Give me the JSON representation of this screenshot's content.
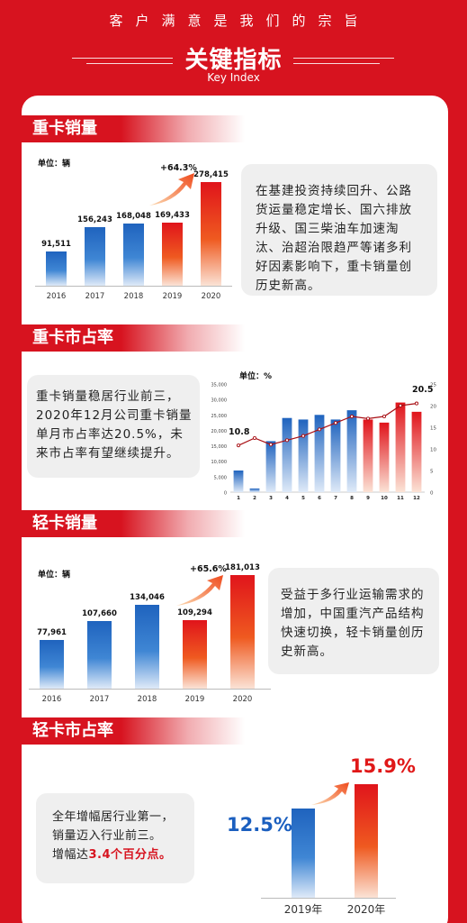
{
  "header": {
    "slogan": "客户满意是我们的宗旨",
    "title": "关键指标",
    "subtitle": "Key Index"
  },
  "heavy_sales": {
    "label": "重卡销量",
    "unit": "单位：辆",
    "growth": "+64.3%",
    "text": "在基建投资持续回升、公路货运量稳定增长、国六排放升级、国三柴油车加速淘汰、治超治限趋严等诸多利好因素影响下，重卡销量创历史新高。",
    "chart_data": {
      "type": "bar",
      "categories": [
        "2016",
        "2017",
        "2018",
        "2019",
        "2020"
      ],
      "values": [
        91511,
        156243,
        168048,
        169433,
        278415
      ],
      "value_labels": [
        "91,511",
        "156,243",
        "168,048",
        "169,433",
        "278,415"
      ],
      "colors": [
        "#2a72c8",
        "#2a72c8",
        "#2a72c8",
        "#e8301c",
        "#e8301c"
      ]
    }
  },
  "heavy_share": {
    "label": "重卡市占率",
    "text": "重卡销量稳居行业前三，2020年12月公司重卡销量单月市占率达20.5%，未来市占率有望继续提升。",
    "unit": "单位：%",
    "start_label": "10.8",
    "end_label": "20.5",
    "chart_data": {
      "type": "bar",
      "categories": [
        "1",
        "2",
        "3",
        "4",
        "5",
        "6",
        "7",
        "8",
        "9",
        "10",
        "11",
        "12"
      ],
      "series": [
        {
          "values": [
            7000,
            1200,
            16500,
            24000,
            23500,
            25000,
            23500,
            26500,
            23500,
            22500,
            29000,
            26000
          ]
        },
        {
          "values": [
            10.8,
            12.5,
            11,
            12,
            13,
            14.5,
            16,
            17.5,
            17,
            17.5,
            20,
            20.5
          ]
        }
      ],
      "y_left_ticks": [
        "0",
        "5,000",
        "10,000",
        "15,000",
        "20,000",
        "25,000",
        "30,000",
        "35,000"
      ],
      "y_right_ticks": [
        "0",
        "5",
        "10",
        "15",
        "20",
        "25"
      ],
      "ylim_left": [
        0,
        35000
      ],
      "ylim_right": [
        0,
        25
      ],
      "bar_colors": [
        "#2a72c8",
        "#2a72c8",
        "#2a72c8",
        "#2a72c8",
        "#2a72c8",
        "#2a72c8",
        "#2a72c8",
        "#2a72c8",
        "#e8301c",
        "#e8301c",
        "#e8301c",
        "#e8301c"
      ],
      "line_color": "#a80f14"
    }
  },
  "light_sales": {
    "label": "轻卡销量",
    "unit": "单位：辆",
    "growth": "+65.6%",
    "text": "受益于多行业运输需求的增加，中国重汽产品结构快速切换，轻卡销量创历史新高。",
    "chart_data": {
      "type": "bar",
      "categories": [
        "2016",
        "2017",
        "2018",
        "2019",
        "2020"
      ],
      "values": [
        77961,
        107660,
        134046,
        109294,
        181013
      ],
      "value_labels": [
        "77,961",
        "107,660",
        "134,046",
        "109,294",
        "181,013"
      ],
      "colors": [
        "#2a72c8",
        "#2a72c8",
        "#2a72c8",
        "#e8301c",
        "#e8301c"
      ]
    }
  },
  "light_share": {
    "label": "轻卡市占率",
    "text_line1": "全年增幅居行业第一，",
    "text_line2": "销量迈入行业前三。",
    "text_line3_prefix": "增幅达",
    "text_line3_highlight": "3.4个百分点。",
    "chart_data": {
      "type": "bar",
      "categories": [
        "2019年",
        "2020年"
      ],
      "values": [
        12.5,
        15.9
      ],
      "value_labels": [
        "12.5%",
        "15.9%"
      ],
      "colors": [
        "#1b5fbf",
        "#e01818"
      ]
    }
  }
}
